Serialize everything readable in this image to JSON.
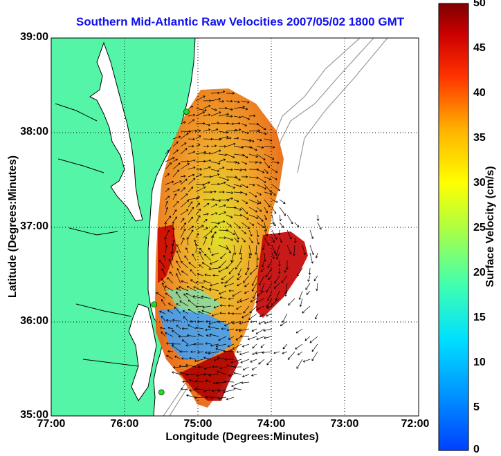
{
  "map": {
    "title": "Southern Mid-Atlantic Raw Velocities 2007/05/02 1800 GMT",
    "x_axis_label": "Longitude (Degrees:Minutes)",
    "y_axis_label": "Latitude (Degrees:Minutes)",
    "x_ticks": [
      "77:00",
      "76:00",
      "75:00",
      "74:00",
      "73:00",
      "72:00"
    ],
    "y_ticks": [
      "39:00",
      "38:00",
      "37:00",
      "36:00",
      "35:00"
    ],
    "extent": {
      "lon_west": 77,
      "lon_east": 72,
      "lat_south": 35,
      "lat_north": 39
    },
    "land_color": "#55f5a8",
    "coastline_color": "#000000",
    "bathymetry_color": "#9a9a9a",
    "grid": "dotted",
    "site_markers": [
      {
        "lon": 75.16,
        "lat": 38.22
      },
      {
        "lon": 75.6,
        "lat": 36.18
      },
      {
        "lon": 75.5,
        "lat": 35.25
      }
    ]
  },
  "colorbar": {
    "label": "Surface Velocity (cm/s)",
    "ticks": [
      "50",
      "45",
      "40",
      "35",
      "30",
      "25",
      "20",
      "15",
      "10",
      "5",
      "0"
    ],
    "min": 0,
    "max": 50,
    "colormap": "jet"
  }
}
